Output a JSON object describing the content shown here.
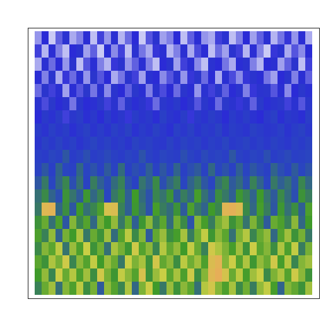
{
  "chart_data": {
    "type": "heatmap",
    "tick_labels": false,
    "zlim": [
      0,
      1
    ],
    "color": [
      "#ffffff",
      "#2b2bd6",
      "#2a45c0",
      "#3f9a2a",
      "#c9cf45",
      "#f2a060"
    ],
    "cells": [
      [
        0.1,
        0.2,
        0.05,
        0.15,
        0.25,
        0.08,
        0.12,
        0.22,
        0.06,
        0.18,
        0.1,
        0.24,
        0.07,
        0.14,
        0.2,
        0.05,
        0.16,
        0.26,
        0.09,
        0.12,
        0.2,
        0.06,
        0.15,
        0.22,
        0.1,
        0.08,
        0.18,
        0.25,
        0.06,
        0.12,
        0.2,
        0.09,
        0.15,
        0.24,
        0.07,
        0.13,
        0.19,
        0.1,
        0.22,
        0.08
      ],
      [
        0.18,
        0.07,
        0.22,
        0.12,
        0.06,
        0.2,
        0.26,
        0.09,
        0.15,
        0.05,
        0.22,
        0.11,
        0.18,
        0.06,
        0.25,
        0.13,
        0.08,
        0.19,
        0.23,
        0.07,
        0.12,
        0.24,
        0.08,
        0.17,
        0.21,
        0.06,
        0.14,
        0.09,
        0.26,
        0.18,
        0.07,
        0.22,
        0.12,
        0.05,
        0.19,
        0.25,
        0.08,
        0.16,
        0.11,
        0.21
      ],
      [
        0.08,
        0.24,
        0.14,
        0.2,
        0.1,
        0.27,
        0.06,
        0.16,
        0.22,
        0.12,
        0.07,
        0.19,
        0.26,
        0.1,
        0.15,
        0.23,
        0.12,
        0.06,
        0.2,
        0.27,
        0.09,
        0.18,
        0.23,
        0.11,
        0.06,
        0.25,
        0.2,
        0.13,
        0.08,
        0.22,
        0.26,
        0.12,
        0.07,
        0.2,
        0.24,
        0.09,
        0.15,
        0.27,
        0.06,
        0.18
      ],
      [
        0.22,
        0.12,
        0.27,
        0.08,
        0.19,
        0.14,
        0.24,
        0.1,
        0.28,
        0.16,
        0.2,
        0.08,
        0.13,
        0.27,
        0.18,
        0.09,
        0.25,
        0.21,
        0.11,
        0.16,
        0.26,
        0.1,
        0.19,
        0.28,
        0.14,
        0.21,
        0.08,
        0.24,
        0.17,
        0.11,
        0.19,
        0.27,
        0.22,
        0.13,
        0.09,
        0.2,
        0.28,
        0.12,
        0.23,
        0.15
      ],
      [
        0.14,
        0.28,
        0.18,
        0.24,
        0.09,
        0.22,
        0.16,
        0.29,
        0.13,
        0.25,
        0.11,
        0.27,
        0.2,
        0.15,
        0.29,
        0.23,
        0.12,
        0.26,
        0.17,
        0.21,
        0.14,
        0.28,
        0.22,
        0.1,
        0.25,
        0.18,
        0.29,
        0.15,
        0.21,
        0.27,
        0.12,
        0.19,
        0.26,
        0.28,
        0.16,
        0.23,
        0.11,
        0.2,
        0.29,
        0.24
      ],
      [
        0.26,
        0.17,
        0.3,
        0.21,
        0.27,
        0.13,
        0.29,
        0.2,
        0.24,
        0.31,
        0.18,
        0.26,
        0.15,
        0.3,
        0.22,
        0.28,
        0.19,
        0.14,
        0.29,
        0.25,
        0.31,
        0.2,
        0.27,
        0.16,
        0.29,
        0.23,
        0.14,
        0.3,
        0.26,
        0.19,
        0.28,
        0.15,
        0.31,
        0.22,
        0.27,
        0.3,
        0.18,
        0.25,
        0.16,
        0.29
      ],
      [
        0.2,
        0.31,
        0.25,
        0.33,
        0.18,
        0.29,
        0.34,
        0.23,
        0.3,
        0.21,
        0.32,
        0.24,
        0.29,
        0.19,
        0.33,
        0.27,
        0.31,
        0.22,
        0.35,
        0.28,
        0.24,
        0.33,
        0.19,
        0.31,
        0.26,
        0.34,
        0.29,
        0.21,
        0.32,
        0.27,
        0.33,
        0.25,
        0.2,
        0.3,
        0.35,
        0.23,
        0.31,
        0.28,
        0.22,
        0.34
      ],
      [
        0.32,
        0.26,
        0.35,
        0.29,
        0.34,
        0.24,
        0.31,
        0.36,
        0.27,
        0.33,
        0.26,
        0.35,
        0.3,
        0.37,
        0.25,
        0.32,
        0.28,
        0.36,
        0.3,
        0.24,
        0.35,
        0.29,
        0.36,
        0.27,
        0.33,
        0.3,
        0.37,
        0.26,
        0.34,
        0.31,
        0.27,
        0.36,
        0.32,
        0.28,
        0.3,
        0.35,
        0.26,
        0.33,
        0.37,
        0.29
      ],
      [
        0.28,
        0.36,
        0.31,
        0.38,
        0.3,
        0.35,
        0.27,
        0.33,
        0.39,
        0.32,
        0.37,
        0.3,
        0.34,
        0.28,
        0.38,
        0.33,
        0.36,
        0.31,
        0.29,
        0.37,
        0.3,
        0.38,
        0.33,
        0.36,
        0.29,
        0.35,
        0.32,
        0.39,
        0.31,
        0.34,
        0.38,
        0.31,
        0.35,
        0.3,
        0.37,
        0.33,
        0.29,
        0.36,
        0.32,
        0.38
      ],
      [
        0.35,
        0.32,
        0.4,
        0.36,
        0.44,
        0.33,
        0.38,
        0.42,
        0.34,
        0.37,
        0.41,
        0.36,
        0.33,
        0.39,
        0.35,
        0.43,
        0.37,
        0.32,
        0.4,
        0.36,
        0.34,
        0.42,
        0.38,
        0.33,
        0.41,
        0.36,
        0.39,
        0.35,
        0.44,
        0.37,
        0.33,
        0.39,
        0.36,
        0.42,
        0.34,
        0.38,
        0.41,
        0.35,
        0.37,
        0.4
      ],
      [
        0.38,
        0.44,
        0.35,
        0.47,
        0.4,
        0.36,
        0.48,
        0.39,
        0.43,
        0.37,
        0.45,
        0.38,
        0.49,
        0.36,
        0.42,
        0.4,
        0.46,
        0.37,
        0.44,
        0.39,
        0.47,
        0.36,
        0.42,
        0.45,
        0.38,
        0.48,
        0.4,
        0.43,
        0.37,
        0.46,
        0.39,
        0.44,
        0.41,
        0.36,
        0.47,
        0.42,
        0.38,
        0.45,
        0.4,
        0.43
      ],
      [
        0.44,
        0.52,
        0.4,
        0.48,
        0.55,
        0.42,
        0.5,
        0.38,
        0.53,
        0.46,
        0.41,
        0.49,
        0.54,
        0.43,
        0.37,
        0.51,
        0.46,
        0.56,
        0.42,
        0.48,
        0.53,
        0.4,
        0.47,
        0.52,
        0.44,
        0.39,
        0.5,
        0.55,
        0.45,
        0.49,
        0.42,
        0.54,
        0.47,
        0.4,
        0.52,
        0.46,
        0.5,
        0.43,
        0.55,
        0.48
      ],
      [
        0.5,
        0.56,
        0.47,
        0.42,
        0.58,
        0.51,
        0.45,
        0.59,
        0.48,
        0.54,
        0.4,
        0.52,
        0.57,
        0.46,
        0.6,
        0.49,
        0.43,
        0.55,
        0.51,
        0.58,
        0.45,
        0.53,
        0.48,
        0.61,
        0.5,
        0.44,
        0.57,
        0.52,
        0.46,
        0.59,
        0.54,
        0.47,
        0.6,
        0.51,
        0.45,
        0.56,
        0.49,
        0.42,
        0.58,
        0.53
      ],
      [
        0.52,
        0.9,
        0.92,
        0.48,
        0.57,
        0.44,
        0.6,
        0.5,
        0.55,
        0.62,
        0.86,
        0.88,
        0.54,
        0.46,
        0.59,
        0.51,
        0.43,
        0.61,
        0.53,
        0.49,
        0.58,
        0.45,
        0.62,
        0.52,
        0.47,
        0.6,
        0.55,
        0.91,
        0.93,
        0.89,
        0.56,
        0.48,
        0.61,
        0.53,
        0.44,
        0.59,
        0.5,
        0.57,
        0.46,
        0.62
      ],
      [
        0.58,
        0.66,
        0.5,
        0.62,
        0.44,
        0.7,
        0.55,
        0.63,
        0.48,
        0.68,
        0.6,
        0.72,
        0.52,
        0.65,
        0.46,
        0.59,
        0.71,
        0.54,
        0.64,
        0.49,
        0.67,
        0.56,
        0.43,
        0.7,
        0.61,
        0.53,
        0.68,
        0.74,
        0.58,
        0.65,
        0.51,
        0.69,
        0.57,
        0.45,
        0.66,
        0.62,
        0.54,
        0.71,
        0.48,
        0.6
      ],
      [
        0.62,
        0.54,
        0.72,
        0.47,
        0.68,
        0.6,
        0.76,
        0.52,
        0.66,
        0.58,
        0.74,
        0.49,
        0.63,
        0.78,
        0.56,
        0.7,
        0.45,
        0.65,
        0.73,
        0.57,
        0.61,
        0.75,
        0.53,
        0.67,
        0.79,
        0.59,
        0.71,
        0.64,
        0.5,
        0.69,
        0.77,
        0.55,
        0.66,
        0.72,
        0.48,
        0.63,
        0.74,
        0.58,
        0.68,
        0.52
      ],
      [
        0.56,
        0.7,
        0.64,
        0.78,
        0.51,
        0.73,
        0.62,
        0.8,
        0.58,
        0.67,
        0.5,
        0.75,
        0.68,
        0.59,
        0.82,
        0.63,
        0.71,
        0.55,
        0.77,
        0.65,
        0.72,
        0.6,
        0.79,
        0.66,
        0.54,
        0.83,
        0.76,
        0.69,
        0.61,
        0.74,
        0.58,
        0.81,
        0.64,
        0.7,
        0.57,
        0.76,
        0.62,
        0.79,
        0.53,
        0.68
      ],
      [
        0.64,
        0.58,
        0.76,
        0.68,
        0.82,
        0.55,
        0.71,
        0.63,
        0.79,
        0.6,
        0.73,
        0.66,
        0.52,
        0.8,
        0.69,
        0.75,
        0.58,
        0.84,
        0.65,
        0.71,
        0.57,
        0.78,
        0.67,
        0.74,
        0.62,
        0.88,
        0.92,
        0.7,
        0.81,
        0.63,
        0.76,
        0.59,
        0.72,
        0.66,
        0.83,
        0.61,
        0.77,
        0.55,
        0.7,
        0.74
      ],
      [
        0.6,
        0.72,
        0.55,
        0.81,
        0.66,
        0.77,
        0.62,
        0.74,
        0.57,
        0.83,
        0.68,
        0.59,
        0.79,
        0.71,
        0.63,
        0.86,
        0.58,
        0.73,
        0.8,
        0.64,
        0.75,
        0.62,
        0.82,
        0.57,
        0.7,
        0.9,
        0.94,
        0.85,
        0.66,
        0.78,
        0.61,
        0.74,
        0.8,
        0.56,
        0.69,
        0.76,
        0.63,
        0.82,
        0.71,
        0.58
      ],
      [
        0.54,
        0.66,
        0.74,
        0.5,
        0.7,
        0.62,
        0.78,
        0.57,
        0.68,
        0.45,
        0.72,
        0.63,
        0.55,
        0.76,
        0.48,
        0.69,
        0.81,
        0.6,
        0.52,
        0.73,
        0.58,
        0.71,
        0.64,
        0.5,
        0.77,
        0.84,
        0.7,
        0.62,
        0.75,
        0.56,
        0.67,
        0.53,
        0.72,
        0.79,
        0.61,
        0.47,
        0.7,
        0.65,
        0.58,
        0.74
      ]
    ]
  }
}
